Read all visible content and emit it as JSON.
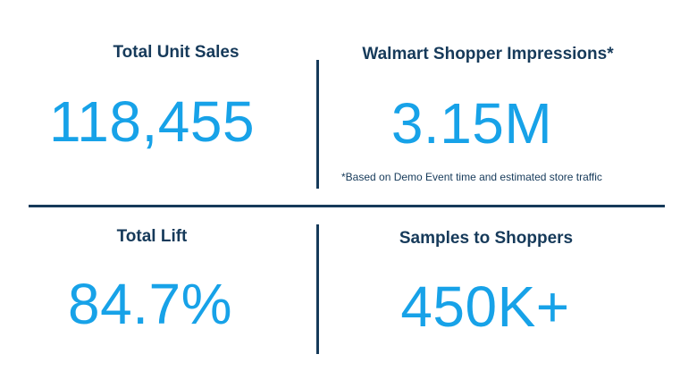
{
  "metrics": {
    "total_unit_sales": {
      "label": "Total Unit Sales",
      "value": "118,455"
    },
    "shopper_impressions": {
      "label": "Walmart Shopper Impressions*",
      "value": "3.15M",
      "footnote": "*Based on Demo Event time and estimated store traffic"
    },
    "total_lift": {
      "label": "Total Lift",
      "value": "84.7%"
    },
    "samples_to_shoppers": {
      "label": "Samples to Shoppers",
      "value": "450K+"
    }
  },
  "colors": {
    "label": "#163a5a",
    "value": "#17a2e8",
    "divider": "#163a5a"
  }
}
